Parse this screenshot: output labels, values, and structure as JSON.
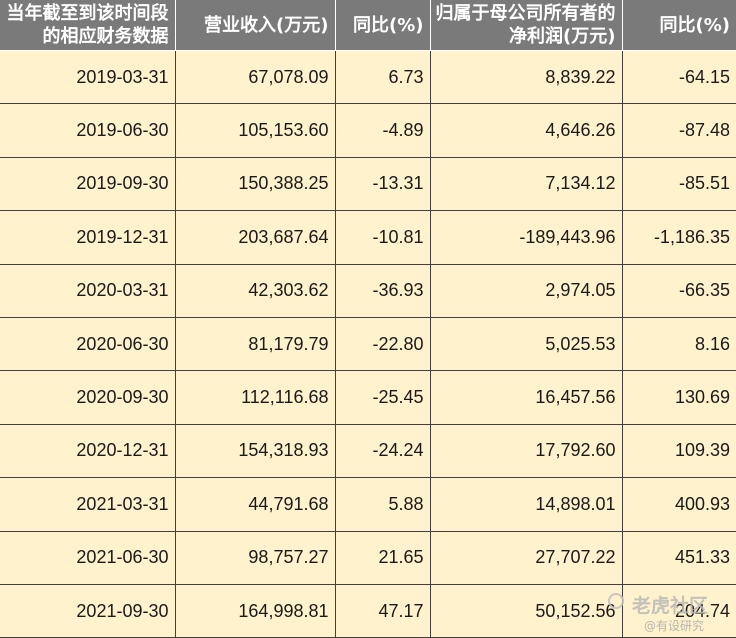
{
  "table": {
    "headers": [
      "当年截至到该时间段的相应财务数据",
      "营业收入(万元)",
      "同比(%)",
      "归属于母公司所有者的净利润(万元)",
      "同比(%)"
    ],
    "rows": [
      [
        "2019-03-31",
        "67,078.09",
        "6.73",
        "8,839.22",
        "-64.15"
      ],
      [
        "2019-06-30",
        "105,153.60",
        "-4.89",
        "4,646.26",
        "-87.48"
      ],
      [
        "2019-09-30",
        "150,388.25",
        "-13.31",
        "7,134.12",
        "-85.51"
      ],
      [
        "2019-12-31",
        "203,687.64",
        "-10.81",
        "-189,443.96",
        "-1,186.35"
      ],
      [
        "2020-03-31",
        "42,303.62",
        "-36.93",
        "2,974.05",
        "-66.35"
      ],
      [
        "2020-06-30",
        "81,179.79",
        "-22.80",
        "5,025.53",
        "8.16"
      ],
      [
        "2020-09-30",
        "112,116.68",
        "-25.45",
        "16,457.56",
        "130.69"
      ],
      [
        "2020-12-31",
        "154,318.93",
        "-24.24",
        "17,792.60",
        "109.39"
      ],
      [
        "2021-03-31",
        "44,791.68",
        "5.88",
        "14,898.01",
        "400.93"
      ],
      [
        "2021-06-30",
        "98,757.27",
        "21.65",
        "27,707.22",
        "451.33"
      ],
      [
        "2021-09-30",
        "164,998.81",
        "47.17",
        "50,152.56",
        "204.74"
      ]
    ]
  },
  "watermark": {
    "title": "老虎社区",
    "subtitle": "@有设研究",
    "icon": "tiger-logo-icon"
  },
  "colors": {
    "header_bg": "#7a7a7a",
    "header_text": "#ffffff",
    "cell_bg": "#fff2cc",
    "border": "#404040"
  }
}
